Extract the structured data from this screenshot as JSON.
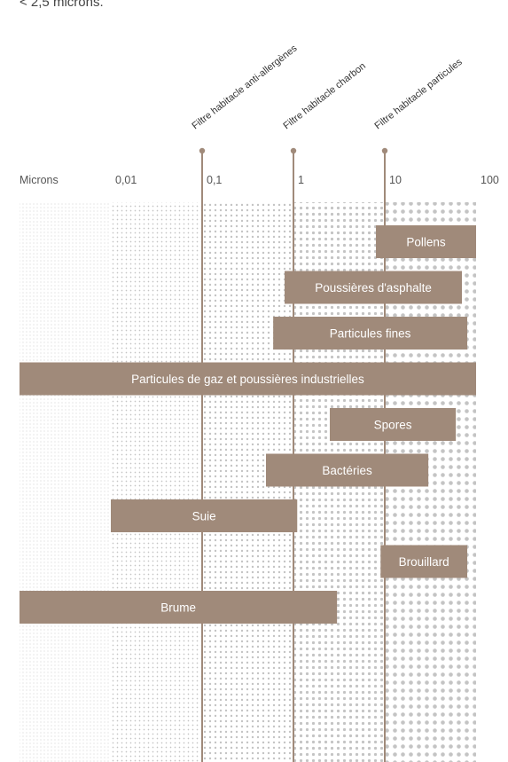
{
  "intro_text": "< 2,5 microns.",
  "colors": {
    "bar": "#a08a7a",
    "line": "#a08a7a",
    "dots": "#c4c4c4",
    "axis_text": "#555555",
    "bar_text": "#ffffff"
  },
  "chart_data": {
    "type": "bar",
    "orientation": "horizontal-range",
    "xscale": "log",
    "xlabel": "Microns",
    "xticks": [
      "0,01",
      "0,1",
      "1",
      "10",
      "100"
    ],
    "xtick_values": [
      0.01,
      0.1,
      1,
      10,
      100
    ],
    "xlim": [
      0.001,
      100
    ],
    "filters": [
      {
        "label": "Filtre habitacle anti-allergènes",
        "value": 0.1
      },
      {
        "label": "Filtre habitacle charbon",
        "value": 1
      },
      {
        "label": "Filtre habitacle particules",
        "value": 10
      }
    ],
    "bars": [
      {
        "label": "Pollens",
        "start": 8,
        "end": 100
      },
      {
        "label": "Poussières d'asphalte",
        "start": 0.8,
        "end": 70
      },
      {
        "label": "Particules fines",
        "start": 0.6,
        "end": 80
      },
      {
        "label": "Particules de gaz et poussières industrielles",
        "start": 0.001,
        "end": 100
      },
      {
        "label": "Spores",
        "start": 2.5,
        "end": 60
      },
      {
        "label": "Bactéries",
        "start": 0.5,
        "end": 30
      },
      {
        "label": "Suie",
        "start": 0.01,
        "end": 1.1
      },
      {
        "label": "Brouillard",
        "start": 9,
        "end": 80
      },
      {
        "label": "Brume",
        "start": 0.001,
        "end": 3
      }
    ]
  }
}
